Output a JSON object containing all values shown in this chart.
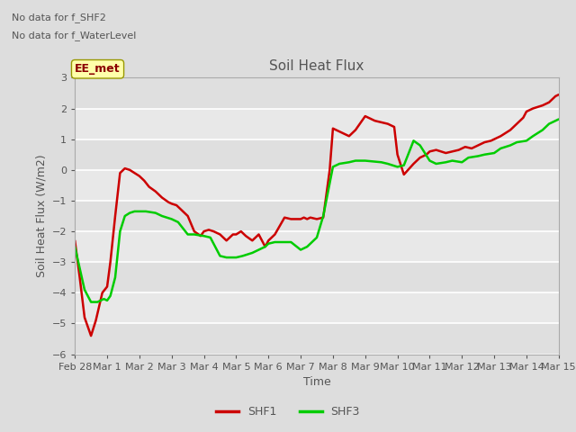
{
  "title": "Soil Heat Flux",
  "ylabel": "Soil Heat Flux (W/m2)",
  "xlabel": "Time",
  "ylim": [
    -6.0,
    3.0
  ],
  "yticks": [
    -6.0,
    -5.0,
    -4.0,
    -3.0,
    -2.0,
    -1.0,
    0.0,
    1.0,
    2.0,
    3.0
  ],
  "annotations": [
    "No data for f_SHF2",
    "No data for f_WaterLevel"
  ],
  "legend_label": "EE_met",
  "fig_bg": "#dddddd",
  "axes_bg": "#e8e8e8",
  "grid_color": "#ffffff",
  "shf1_color": "#cc0000",
  "shf3_color": "#00cc00",
  "text_color": "#555555",
  "x_tick_labels": [
    "Feb 28",
    "Mar 1",
    "Mar 2",
    "Mar 3",
    "Mar 4",
    "Mar 5",
    "Mar 6",
    "Mar 7",
    "Mar 8",
    "Mar 9",
    "Mar 10",
    "Mar 11",
    "Mar 12",
    "Mar 13",
    "Mar 14",
    "Mar 15"
  ],
  "shf1_x": [
    0,
    0.15,
    0.3,
    0.5,
    0.65,
    0.85,
    1.0,
    1.1,
    1.25,
    1.4,
    1.55,
    1.7,
    1.85,
    2.0,
    2.15,
    2.3,
    2.5,
    2.7,
    2.9,
    3.0,
    3.15,
    3.3,
    3.5,
    3.7,
    3.9,
    4.0,
    4.15,
    4.3,
    4.5,
    4.7,
    4.9,
    5.0,
    5.15,
    5.3,
    5.5,
    5.7,
    5.9,
    6.0,
    6.1,
    6.2,
    6.5,
    6.7,
    6.9,
    7.0,
    7.1,
    7.2,
    7.3,
    7.5,
    7.7,
    7.9,
    8.0,
    8.1,
    8.3,
    8.5,
    8.7,
    8.9,
    9.0,
    9.1,
    9.3,
    9.5,
    9.7,
    9.9,
    10.0,
    10.2,
    10.5,
    10.7,
    10.9,
    11.0,
    11.2,
    11.5,
    11.7,
    11.9,
    12.0,
    12.1,
    12.3,
    12.5,
    12.7,
    12.9,
    13.0,
    13.2,
    13.5,
    13.7,
    13.9,
    14.0,
    14.2,
    14.5,
    14.7,
    14.9,
    15.0
  ],
  "shf1_y": [
    -2.3,
    -3.5,
    -4.8,
    -5.4,
    -4.9,
    -4.0,
    -3.8,
    -3.0,
    -1.5,
    -0.1,
    0.05,
    0.0,
    -0.1,
    -0.2,
    -0.35,
    -0.55,
    -0.7,
    -0.9,
    -1.05,
    -1.1,
    -1.15,
    -1.3,
    -1.5,
    -2.0,
    -2.15,
    -2.0,
    -1.95,
    -2.0,
    -2.1,
    -2.3,
    -2.1,
    -2.1,
    -2.0,
    -2.15,
    -2.3,
    -2.1,
    -2.5,
    -2.3,
    -2.2,
    -2.1,
    -1.55,
    -1.6,
    -1.6,
    -1.6,
    -1.55,
    -1.6,
    -1.55,
    -1.6,
    -1.55,
    0.0,
    1.35,
    1.3,
    1.2,
    1.1,
    1.3,
    1.6,
    1.75,
    1.7,
    1.6,
    1.55,
    1.5,
    1.4,
    0.5,
    -0.15,
    0.2,
    0.4,
    0.5,
    0.6,
    0.65,
    0.55,
    0.6,
    0.65,
    0.7,
    0.75,
    0.7,
    0.8,
    0.9,
    0.95,
    1.0,
    1.1,
    1.3,
    1.5,
    1.7,
    1.9,
    2.0,
    2.1,
    2.2,
    2.4,
    2.45
  ],
  "shf3_x": [
    0,
    0.15,
    0.3,
    0.5,
    0.7,
    0.9,
    1.0,
    1.1,
    1.25,
    1.4,
    1.55,
    1.7,
    1.85,
    2.0,
    2.2,
    2.5,
    2.7,
    3.0,
    3.2,
    3.5,
    3.7,
    4.0,
    4.2,
    4.5,
    4.7,
    4.9,
    5.0,
    5.2,
    5.5,
    5.7,
    5.9,
    6.0,
    6.2,
    6.5,
    6.7,
    7.0,
    7.2,
    7.5,
    7.7,
    8.0,
    8.2,
    8.5,
    8.7,
    9.0,
    9.2,
    9.5,
    9.7,
    10.0,
    10.2,
    10.5,
    10.7,
    11.0,
    11.2,
    11.5,
    11.7,
    12.0,
    12.2,
    12.5,
    12.7,
    13.0,
    13.2,
    13.5,
    13.7,
    14.0,
    14.2,
    14.5,
    14.7,
    15.0
  ],
  "shf3_y": [
    -2.5,
    -3.2,
    -3.9,
    -4.3,
    -4.3,
    -4.2,
    -4.25,
    -4.1,
    -3.5,
    -2.0,
    -1.5,
    -1.4,
    -1.35,
    -1.35,
    -1.35,
    -1.4,
    -1.5,
    -1.6,
    -1.7,
    -2.1,
    -2.1,
    -2.15,
    -2.2,
    -2.8,
    -2.85,
    -2.85,
    -2.85,
    -2.8,
    -2.7,
    -2.6,
    -2.5,
    -2.4,
    -2.35,
    -2.35,
    -2.35,
    -2.6,
    -2.5,
    -2.2,
    -1.5,
    0.1,
    0.2,
    0.25,
    0.3,
    0.3,
    0.28,
    0.25,
    0.2,
    0.1,
    0.15,
    0.95,
    0.8,
    0.3,
    0.2,
    0.25,
    0.3,
    0.25,
    0.4,
    0.45,
    0.5,
    0.55,
    0.7,
    0.8,
    0.9,
    0.95,
    1.1,
    1.3,
    1.5,
    1.65
  ]
}
